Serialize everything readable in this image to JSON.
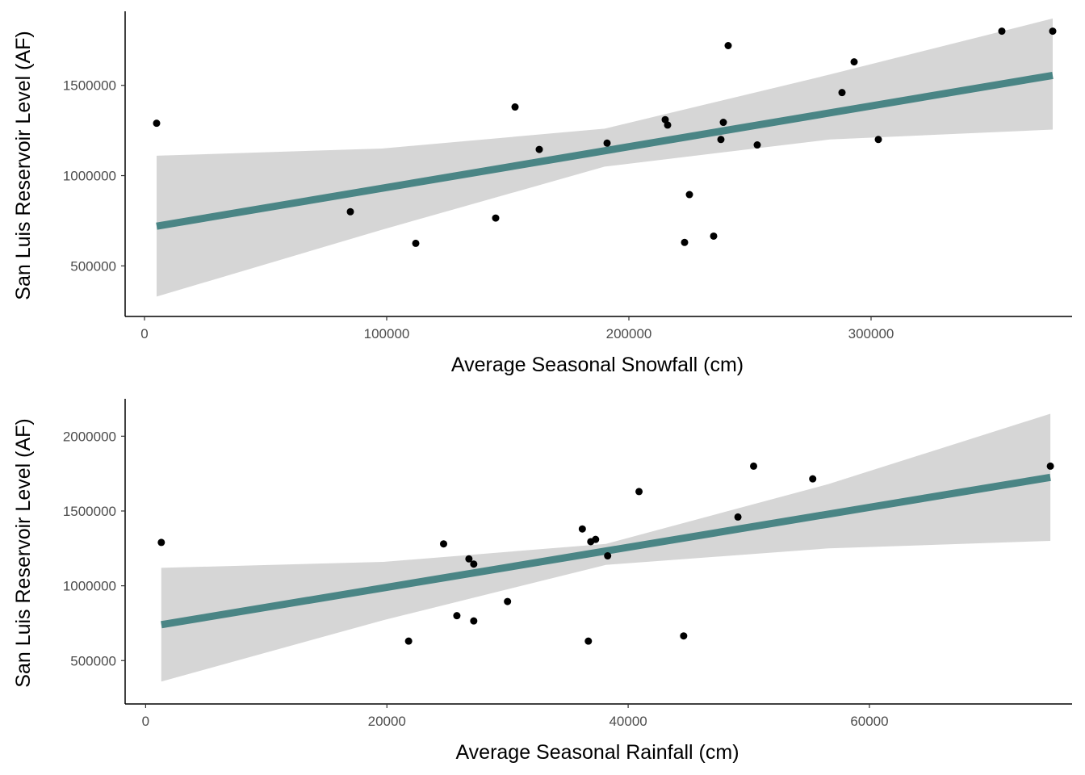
{
  "colors": {
    "background": "#ffffff",
    "point": "#000000",
    "fit_line": "#4a8585",
    "ribbon": "#d6d6d6",
    "axis": "#000000",
    "tick_label": "#4d4d4d"
  },
  "chart_data": [
    {
      "type": "scatter",
      "xlabel": "Average Seasonal Snowfall (cm)",
      "ylabel": "San Luis Reservoir Level (AF)",
      "xlim": [
        -8000,
        383000
      ],
      "ylim": [
        220000,
        1910000
      ],
      "xticks": [
        0,
        100000,
        200000,
        300000
      ],
      "yticks": [
        500000,
        1000000,
        1500000
      ],
      "points": [
        {
          "x": 5000,
          "y": 1290000
        },
        {
          "x": 85000,
          "y": 800000
        },
        {
          "x": 112000,
          "y": 625000
        },
        {
          "x": 145000,
          "y": 765000
        },
        {
          "x": 153000,
          "y": 1380000
        },
        {
          "x": 163000,
          "y": 1145000
        },
        {
          "x": 191000,
          "y": 1180000
        },
        {
          "x": 215000,
          "y": 1310000
        },
        {
          "x": 216000,
          "y": 1280000
        },
        {
          "x": 223000,
          "y": 630000
        },
        {
          "x": 225000,
          "y": 895000
        },
        {
          "x": 235000,
          "y": 665000
        },
        {
          "x": 238000,
          "y": 1200000
        },
        {
          "x": 239000,
          "y": 1295000
        },
        {
          "x": 241000,
          "y": 1720000
        },
        {
          "x": 253000,
          "y": 1170000
        },
        {
          "x": 288000,
          "y": 1460000
        },
        {
          "x": 293000,
          "y": 1630000
        },
        {
          "x": 303000,
          "y": 1200000
        },
        {
          "x": 354000,
          "y": 1800000
        },
        {
          "x": 375000,
          "y": 1800000
        }
      ],
      "fit": {
        "x": [
          5000,
          375000
        ],
        "y": [
          720000,
          1555000
        ]
      },
      "ribbon": {
        "x": [
          5000,
          98000,
          190000,
          283000,
          375000
        ],
        "lower": [
          330000,
          700000,
          1050000,
          1200000,
          1255000
        ],
        "upper": [
          1110000,
          1150000,
          1260000,
          1560000,
          1870000
        ]
      }
    },
    {
      "type": "scatter",
      "xlabel": "Average Seasonal Rainfall (cm)",
      "ylabel": "San Luis Reservoir Level (AF)",
      "xlim": [
        -1700,
        76800
      ],
      "ylim": [
        210000,
        2250000
      ],
      "xticks": [
        0,
        20000,
        40000,
        60000
      ],
      "yticks": [
        500000,
        1000000,
        1500000,
        2000000
      ],
      "points": [
        {
          "x": 1300,
          "y": 1290000
        },
        {
          "x": 21800,
          "y": 630000
        },
        {
          "x": 24700,
          "y": 1280000
        },
        {
          "x": 25800,
          "y": 800000
        },
        {
          "x": 26800,
          "y": 1180000
        },
        {
          "x": 27200,
          "y": 1145000
        },
        {
          "x": 27200,
          "y": 765000
        },
        {
          "x": 30000,
          "y": 895000
        },
        {
          "x": 36200,
          "y": 1380000
        },
        {
          "x": 36700,
          "y": 630000
        },
        {
          "x": 36900,
          "y": 1295000
        },
        {
          "x": 37300,
          "y": 1310000
        },
        {
          "x": 38300,
          "y": 1200000
        },
        {
          "x": 40900,
          "y": 1630000
        },
        {
          "x": 44600,
          "y": 665000
        },
        {
          "x": 49100,
          "y": 1460000
        },
        {
          "x": 50400,
          "y": 1800000
        },
        {
          "x": 55300,
          "y": 1715000
        },
        {
          "x": 75000,
          "y": 1800000
        }
      ],
      "fit": {
        "x": [
          1300,
          75000
        ],
        "y": [
          740000,
          1725000
        ]
      },
      "ribbon": {
        "x": [
          1300,
          19700,
          38150,
          56600,
          75000
        ],
        "lower": [
          360000,
          770000,
          1140000,
          1250000,
          1300000
        ],
        "upper": [
          1120000,
          1160000,
          1280000,
          1680000,
          2150000
        ]
      }
    }
  ]
}
